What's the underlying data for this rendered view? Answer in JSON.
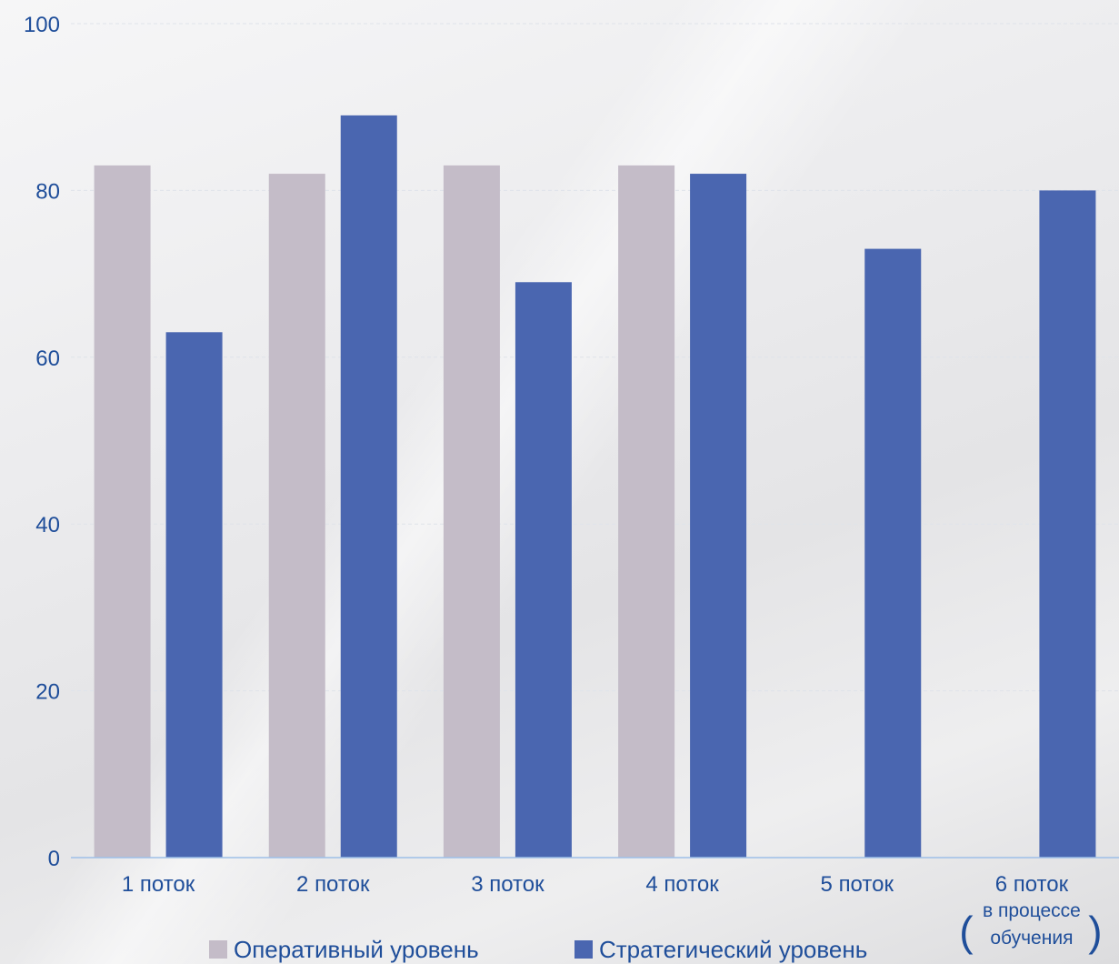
{
  "chart_data": {
    "type": "bar",
    "categories": [
      "1 поток",
      "2 поток",
      "3 поток",
      "4 поток",
      "5 поток",
      "6 поток"
    ],
    "category_notes": [
      "",
      "",
      "",
      "",
      "",
      "(в процессе обучения)"
    ],
    "series": [
      {
        "name": "Оперативный уровень",
        "values": [
          83,
          82,
          83,
          83,
          0,
          0
        ]
      },
      {
        "name": "Стратегический уровень",
        "values": [
          63,
          89,
          69,
          82,
          73,
          80
        ]
      }
    ],
    "ylim": [
      0,
      100
    ],
    "yticks": [
      0,
      20,
      40,
      60,
      80,
      100
    ],
    "grid": true,
    "legend": "bottom",
    "colors": {
      "series": [
        "#c4bcc8",
        "#4a66b0"
      ],
      "text": "#1f4e9a",
      "axis": "#9dbfe8",
      "grid": "#dfe3ea"
    },
    "title": "",
    "xlabel": "",
    "ylabel": ""
  }
}
